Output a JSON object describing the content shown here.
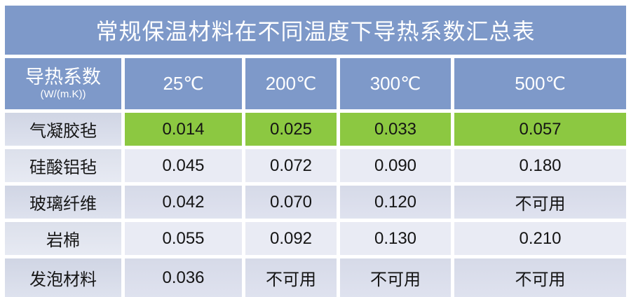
{
  "title": "常规保温材料在不同温度下导热系数汇总表",
  "table": {
    "corner": {
      "line1": "导热系数",
      "line2": "(W/(m.K))"
    },
    "columns": [
      "25℃",
      "200℃",
      "300℃",
      "500℃"
    ],
    "rows": [
      {
        "label": "气凝胶毡",
        "values": [
          "0.014",
          "0.025",
          "0.033",
          "0.057"
        ],
        "highlight": true
      },
      {
        "label": "硅酸铝毡",
        "values": [
          "0.045",
          "0.072",
          "0.090",
          "0.180"
        ],
        "highlight": false
      },
      {
        "label": "玻璃纤维",
        "values": [
          "0.042",
          "0.070",
          "0.120",
          "不可用"
        ],
        "highlight": false
      },
      {
        "label": "岩棉",
        "values": [
          "0.055",
          "0.092",
          "0.130",
          "0.210"
        ],
        "highlight": false
      },
      {
        "label": "发泡材料",
        "values": [
          "0.036",
          "不可用",
          "不可用",
          "不可用"
        ],
        "highlight": false
      }
    ]
  },
  "colors": {
    "header_blue": "#7E99C9",
    "highlight_green": "#8CC841",
    "band_light": "#E9EBF4",
    "band_dark": "#D8DCE9"
  },
  "chart_data": {
    "type": "table",
    "title": "常规保温材料在不同温度下导热系数汇总表",
    "value_unit": "导热系数 (W/(m.K))",
    "columns": [
      "25℃",
      "200℃",
      "300℃",
      "500℃"
    ],
    "rows": [
      {
        "material": "气凝胶毡",
        "values": [
          "0.014",
          "0.025",
          "0.033",
          "0.057"
        ],
        "highlighted": true
      },
      {
        "material": "硅酸铝毡",
        "values": [
          "0.045",
          "0.072",
          "0.090",
          "0.180"
        ],
        "highlighted": false
      },
      {
        "material": "玻璃纤维",
        "values": [
          "0.042",
          "0.070",
          "0.120",
          "不可用"
        ],
        "highlighted": false
      },
      {
        "material": "岩棉",
        "values": [
          "0.055",
          "0.092",
          "0.130",
          "0.210"
        ],
        "highlighted": false
      },
      {
        "material": "发泡材料",
        "values": [
          "0.036",
          "不可用",
          "不可用",
          "不可用"
        ],
        "highlighted": false
      }
    ]
  }
}
